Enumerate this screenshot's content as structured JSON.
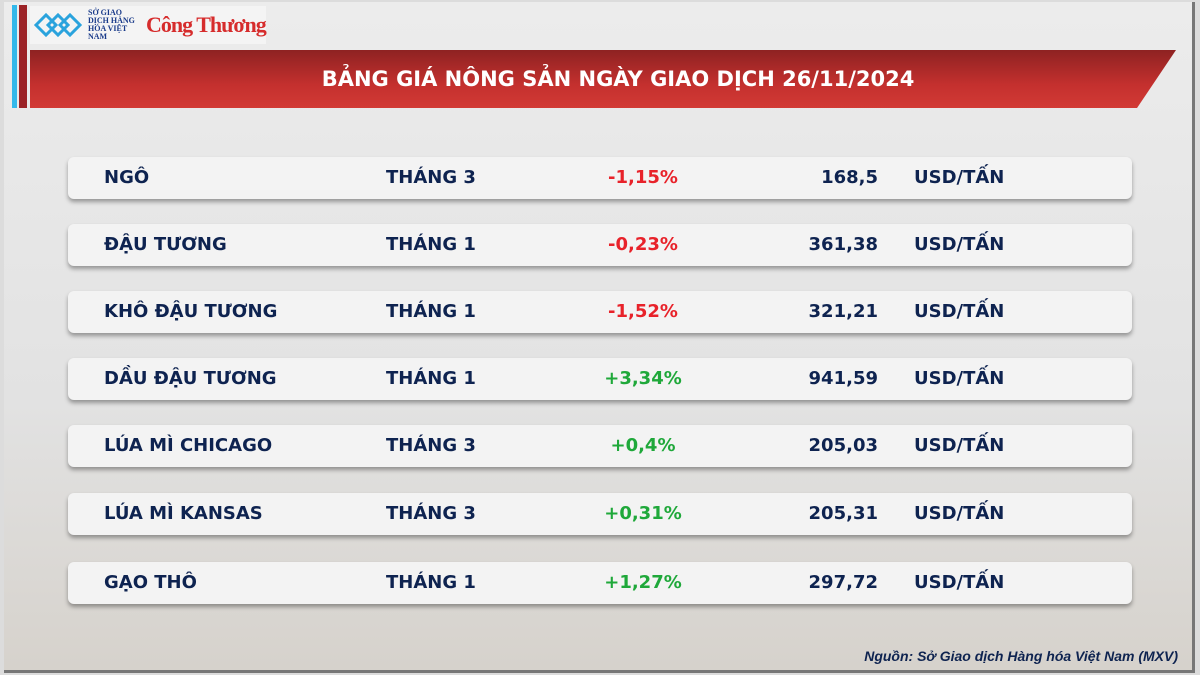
{
  "logo": {
    "exchange_text": "SỞ GIAO DỊCH HÀNG HÓA VIỆT NAM",
    "brand": "Công Thương"
  },
  "title": "BẢNG GIÁ NÔNG SẢN NGÀY GIAO DỊCH 26/11/2024",
  "colors": {
    "negative": "#e8222a",
    "positive": "#1fa83a",
    "text": "#0e2350",
    "banner": "#c4302e"
  },
  "rows": [
    {
      "name": "NGÔ",
      "month": "THÁNG 3",
      "change": "-1,15%",
      "price": "168,5",
      "unit": "USD/TẤN"
    },
    {
      "name": "ĐẬU TƯƠNG",
      "month": "THÁNG 1",
      "change": "-0,23%",
      "price": "361,38",
      "unit": "USD/TẤN"
    },
    {
      "name": "KHÔ ĐẬU TƯƠNG",
      "month": "THÁNG 1",
      "change": "-1,52%",
      "price": "321,21",
      "unit": "USD/TẤN"
    },
    {
      "name": "DẦU ĐẬU TƯƠNG",
      "month": "THÁNG 1",
      "change": "+3,34%",
      "price": "941,59",
      "unit": "USD/TẤN"
    },
    {
      "name": "LÚA MÌ CHICAGO",
      "month": "THÁNG 3",
      "change": "+0,4%",
      "price": "205,03",
      "unit": "USD/TẤN"
    },
    {
      "name": "LÚA MÌ KANSAS",
      "month": "THÁNG 3",
      "change": "+0,31%",
      "price": "205,31",
      "unit": "USD/TẤN"
    },
    {
      "name": "GẠO THÔ",
      "month": "THÁNG 1",
      "change": "+1,27%",
      "price": "297,72",
      "unit": "USD/TẤN"
    }
  ],
  "source": "Nguồn: Sở Giao dịch Hàng hóa Việt Nam (MXV)"
}
